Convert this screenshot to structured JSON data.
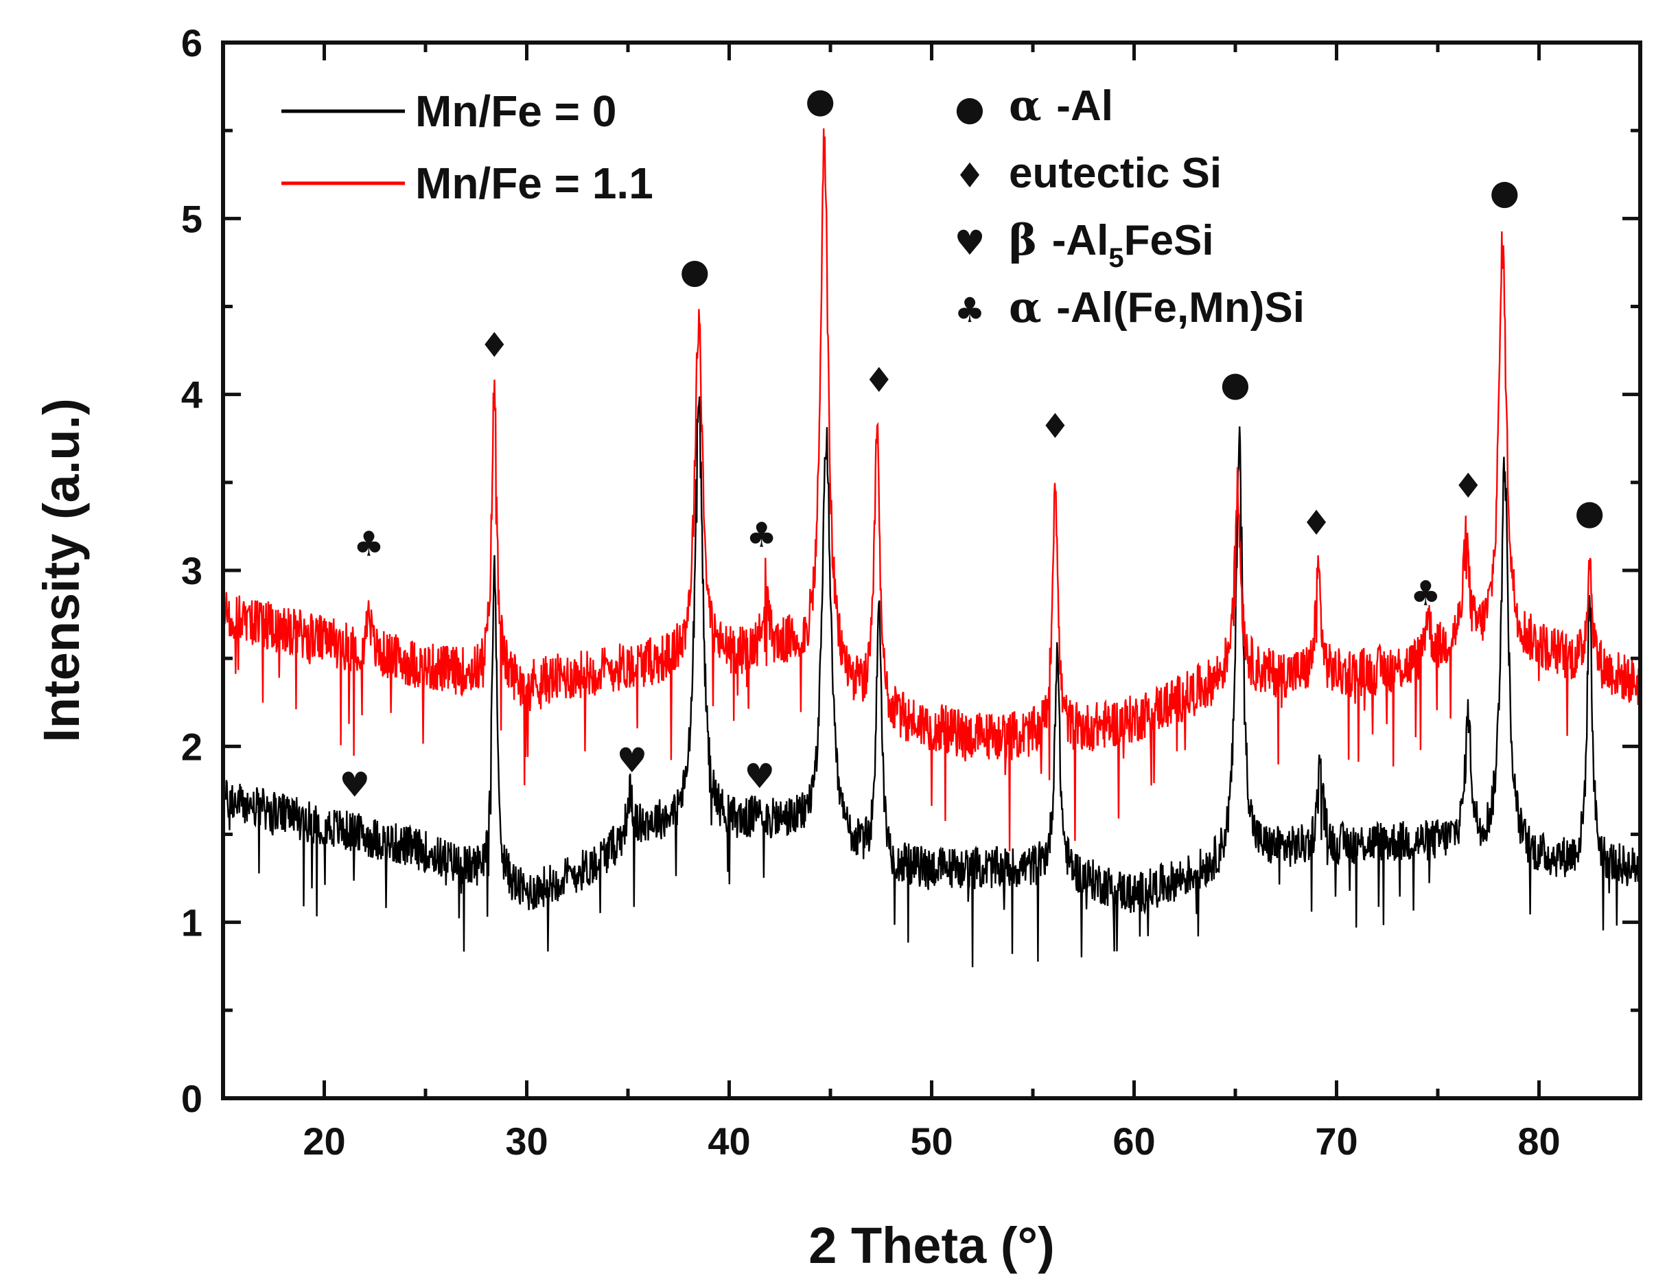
{
  "chart_data": {
    "type": "line",
    "title": "",
    "xlabel": "2 Theta (°)",
    "ylabel": "Intensity (a.u.)",
    "xlim": [
      15,
      85
    ],
    "ylim": [
      0,
      6
    ],
    "x_ticks": [
      20,
      30,
      40,
      50,
      60,
      70,
      80
    ],
    "x_tick_labels": [
      "20",
      "30",
      "40",
      "50",
      "60",
      "70",
      "80"
    ],
    "y_ticks": [
      0,
      1,
      2,
      3,
      4,
      5,
      6
    ],
    "y_tick_labels": [
      "0",
      "1",
      "2",
      "3",
      "4",
      "5",
      "6"
    ],
    "grid": false,
    "legend_position": "top-left",
    "series": [
      {
        "name": "Mn/Fe = 0",
        "color": "#000000",
        "baseline": [
          [
            15,
            1.7
          ],
          [
            20,
            1.55
          ],
          [
            25,
            1.4
          ],
          [
            30,
            1.15
          ],
          [
            33,
            1.3
          ],
          [
            36,
            1.55
          ],
          [
            40,
            1.55
          ],
          [
            43,
            1.55
          ],
          [
            48,
            1.3
          ],
          [
            52,
            1.3
          ],
          [
            56,
            1.3
          ],
          [
            60,
            1.15
          ],
          [
            64,
            1.3
          ],
          [
            67,
            1.4
          ],
          [
            72,
            1.45
          ],
          [
            76,
            1.45
          ],
          [
            80,
            1.35
          ],
          [
            85,
            1.3
          ]
        ],
        "peaks": [
          [
            28.4,
            3.05,
            0.3
          ],
          [
            35.1,
            1.72,
            0.35
          ],
          [
            38.5,
            4.05,
            0.45
          ],
          [
            41.5,
            1.65,
            0.35
          ],
          [
            44.8,
            3.75,
            0.5
          ],
          [
            47.4,
            2.85,
            0.3
          ],
          [
            56.2,
            2.55,
            0.3
          ],
          [
            65.2,
            3.8,
            0.4
          ],
          [
            69.2,
            1.95,
            0.3
          ],
          [
            76.5,
            2.15,
            0.35
          ],
          [
            78.3,
            3.6,
            0.45
          ],
          [
            82.5,
            2.85,
            0.3
          ]
        ],
        "noise": 0.12
      },
      {
        "name": "Mn/Fe = 1.1",
        "color": "#ff0000",
        "baseline": [
          [
            15,
            2.75
          ],
          [
            20,
            2.6
          ],
          [
            25,
            2.45
          ],
          [
            30,
            2.35
          ],
          [
            35,
            2.45
          ],
          [
            40,
            2.5
          ],
          [
            43,
            2.55
          ],
          [
            48,
            2.15
          ],
          [
            52,
            2.05
          ],
          [
            56,
            2.05
          ],
          [
            60,
            2.15
          ],
          [
            65,
            2.4
          ],
          [
            70,
            2.4
          ],
          [
            74,
            2.45
          ],
          [
            76,
            2.6
          ],
          [
            80,
            2.55
          ],
          [
            85,
            2.35
          ]
        ],
        "peaks": [
          [
            22.2,
            2.85,
            0.2
          ],
          [
            28.4,
            4.05,
            0.3
          ],
          [
            38.5,
            4.45,
            0.45
          ],
          [
            41.8,
            2.92,
            0.3
          ],
          [
            44.7,
            5.45,
            0.45
          ],
          [
            47.3,
            3.8,
            0.3
          ],
          [
            56.1,
            3.55,
            0.3
          ],
          [
            65.1,
            3.45,
            0.4
          ],
          [
            69.1,
            3.0,
            0.3
          ],
          [
            74.5,
            2.75,
            0.35
          ],
          [
            76.4,
            3.2,
            0.3
          ],
          [
            78.2,
            4.85,
            0.45
          ],
          [
            82.5,
            3.05,
            0.3
          ]
        ],
        "noise": 0.14
      }
    ],
    "phase_legend": [
      {
        "symbol": "●",
        "greek": "α",
        "label": "-Al"
      },
      {
        "symbol": "♦",
        "greek": "",
        "label": "eutectic Si"
      },
      {
        "symbol": "♥",
        "greek": "β",
        "label": "-Al",
        "subscript": "5",
        "suffix": "FeSi"
      },
      {
        "symbol": "♣",
        "greek": "α",
        "label": "-Al(Fe,Mn)Si"
      }
    ],
    "peak_markers": [
      {
        "symbol": "♣",
        "x": 22.2,
        "y": 3.15
      },
      {
        "symbol": "♦",
        "x": 28.4,
        "y": 4.28
      },
      {
        "symbol": "●",
        "x": 38.3,
        "y": 4.7
      },
      {
        "symbol": "●",
        "x": 44.5,
        "y": 5.67
      },
      {
        "symbol": "♣",
        "x": 41.6,
        "y": 3.2
      },
      {
        "symbol": "♦",
        "x": 47.4,
        "y": 4.08
      },
      {
        "symbol": "♦",
        "x": 56.1,
        "y": 3.82
      },
      {
        "symbol": "●",
        "x": 65.0,
        "y": 4.06
      },
      {
        "symbol": "♦",
        "x": 69.0,
        "y": 3.27
      },
      {
        "symbol": "♣",
        "x": 74.4,
        "y": 2.87
      },
      {
        "symbol": "♦",
        "x": 76.5,
        "y": 3.48
      },
      {
        "symbol": "●",
        "x": 78.3,
        "y": 5.15
      },
      {
        "symbol": "●",
        "x": 82.5,
        "y": 3.33
      },
      {
        "symbol": "♥",
        "x": 21.5,
        "y": 1.78
      },
      {
        "symbol": "♥",
        "x": 35.2,
        "y": 1.92
      },
      {
        "symbol": "♥",
        "x": 41.5,
        "y": 1.83
      }
    ]
  }
}
